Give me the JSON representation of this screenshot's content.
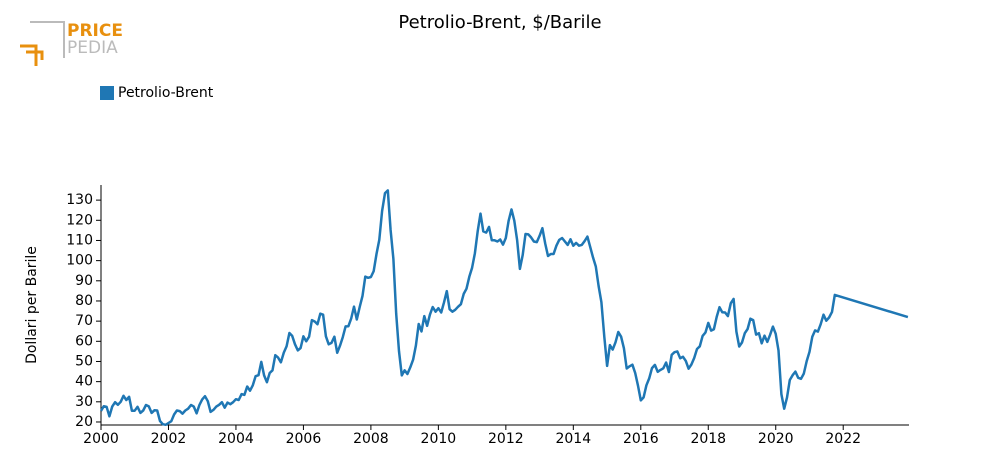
{
  "logo": {
    "top": "PRICE",
    "bottom": "PEDIA"
  },
  "chart_data": {
    "type": "line",
    "title": "Petrolio-Brent, $/Barile",
    "ylabel": "Dollari per Barile",
    "xlim": [
      2000,
      2023.95
    ],
    "ylim": [
      18.5,
      137.5
    ],
    "xticks": [
      2000,
      2002,
      2004,
      2006,
      2008,
      2010,
      2012,
      2014,
      2016,
      2018,
      2020,
      2022
    ],
    "yticks": [
      20,
      30,
      40,
      50,
      60,
      70,
      80,
      90,
      100,
      110,
      120,
      130
    ],
    "grid": false,
    "legend": "top-left",
    "x": [
      2000,
      2000.083,
      2000.167,
      2000.25,
      2000.333,
      2000.417,
      2000.5,
      2000.583,
      2000.667,
      2000.75,
      2000.833,
      2000.917,
      2001,
      2001.083,
      2001.167,
      2001.25,
      2001.333,
      2001.417,
      2001.5,
      2001.583,
      2001.667,
      2001.75,
      2001.833,
      2001.917,
      2002,
      2002.083,
      2002.167,
      2002.25,
      2002.333,
      2002.417,
      2002.5,
      2002.583,
      2002.667,
      2002.75,
      2002.833,
      2002.917,
      2003,
      2003.083,
      2003.167,
      2003.25,
      2003.333,
      2003.417,
      2003.5,
      2003.583,
      2003.667,
      2003.75,
      2003.833,
      2003.917,
      2004,
      2004.083,
      2004.167,
      2004.25,
      2004.333,
      2004.417,
      2004.5,
      2004.583,
      2004.667,
      2004.75,
      2004.833,
      2004.917,
      2005,
      2005.083,
      2005.167,
      2005.25,
      2005.333,
      2005.417,
      2005.5,
      2005.583,
      2005.667,
      2005.75,
      2005.833,
      2005.917,
      2006,
      2006.083,
      2006.167,
      2006.25,
      2006.333,
      2006.417,
      2006.5,
      2006.583,
      2006.667,
      2006.75,
      2006.833,
      2006.917,
      2007,
      2007.083,
      2007.167,
      2007.25,
      2007.333,
      2007.417,
      2007.5,
      2007.583,
      2007.667,
      2007.75,
      2007.833,
      2007.917,
      2008,
      2008.083,
      2008.167,
      2008.25,
      2008.333,
      2008.417,
      2008.5,
      2008.583,
      2008.667,
      2008.75,
      2008.833,
      2008.917,
      2009,
      2009.083,
      2009.167,
      2009.25,
      2009.333,
      2009.417,
      2009.5,
      2009.583,
      2009.667,
      2009.75,
      2009.833,
      2009.917,
      2010,
      2010.083,
      2010.167,
      2010.25,
      2010.333,
      2010.417,
      2010.5,
      2010.583,
      2010.667,
      2010.75,
      2010.833,
      2010.917,
      2011,
      2011.083,
      2011.167,
      2011.25,
      2011.333,
      2011.417,
      2011.5,
      2011.583,
      2011.667,
      2011.75,
      2011.833,
      2011.917,
      2012,
      2012.083,
      2012.167,
      2012.25,
      2012.333,
      2012.417,
      2012.5,
      2012.583,
      2012.667,
      2012.75,
      2012.833,
      2012.917,
      2013,
      2013.083,
      2013.167,
      2013.25,
      2013.333,
      2013.417,
      2013.5,
      2013.583,
      2013.667,
      2013.75,
      2013.833,
      2013.917,
      2014,
      2014.083,
      2014.167,
      2014.25,
      2014.333,
      2014.417,
      2014.5,
      2014.583,
      2014.667,
      2014.75,
      2014.833,
      2014.917,
      2015,
      2015.083,
      2015.167,
      2015.25,
      2015.333,
      2015.417,
      2015.5,
      2015.583,
      2015.667,
      2015.75,
      2015.833,
      2015.917,
      2016,
      2016.083,
      2016.167,
      2016.25,
      2016.333,
      2016.417,
      2016.5,
      2016.583,
      2016.667,
      2016.75,
      2016.833,
      2016.917,
      2017,
      2017.083,
      2017.167,
      2017.25,
      2017.333,
      2017.417,
      2017.5,
      2017.583,
      2017.667,
      2017.75,
      2017.833,
      2017.917,
      2018,
      2018.083,
      2018.167,
      2018.25,
      2018.333,
      2018.417,
      2018.5,
      2018.583,
      2018.667,
      2018.75,
      2018.833,
      2018.917,
      2019,
      2019.083,
      2019.167,
      2019.25,
      2019.333,
      2019.417,
      2019.5,
      2019.583,
      2019.667,
      2019.75,
      2019.833,
      2019.917,
      2020,
      2020.083,
      2020.167,
      2020.25,
      2020.333,
      2020.417,
      2020.5,
      2020.583,
      2020.667,
      2020.75,
      2020.833,
      2020.917,
      2021,
      2021.083,
      2021.167,
      2021.25,
      2021.333,
      2021.417,
      2021.5,
      2021.583,
      2021.667,
      2021.75,
      2023.917
    ],
    "series": [
      {
        "name": "Petrolio-Brent",
        "color": "#1f77b4",
        "values": [
          25.5,
          27.8,
          27.5,
          22.8,
          27.6,
          29.8,
          28.5,
          30.0,
          33.0,
          30.9,
          32.5,
          25.6,
          25.6,
          27.5,
          24.5,
          25.7,
          28.4,
          27.7,
          24.5,
          25.8,
          25.7,
          20.5,
          18.9,
          18.6,
          19.5,
          20.4,
          23.7,
          25.7,
          25.4,
          24.1,
          25.7,
          26.6,
          28.4,
          27.6,
          24.3,
          28.4,
          31.2,
          32.8,
          30.3,
          25.0,
          26.0,
          27.6,
          28.5,
          29.8,
          27.1,
          29.6,
          28.8,
          29.8,
          31.3,
          30.9,
          33.8,
          33.4,
          37.6,
          35.5,
          38.2,
          42.7,
          43.2,
          49.8,
          43.1,
          39.7,
          44.3,
          45.6,
          53.1,
          51.9,
          49.6,
          54.4,
          57.5,
          64.1,
          62.7,
          58.5,
          55.5,
          56.7,
          62.5,
          60.0,
          62.3,
          70.5,
          69.8,
          68.5,
          73.7,
          73.2,
          62.5,
          58.5,
          59.2,
          62.3,
          54.3,
          57.8,
          62.1,
          67.4,
          67.5,
          71.3,
          77.2,
          70.8,
          77.0,
          82.5,
          92.1,
          91.5,
          91.9,
          94.8,
          103.3,
          110.4,
          124.6,
          133.5,
          134.8,
          115.2,
          100.8,
          73.6,
          55.1,
          43.1,
          45.6,
          43.8,
          47.1,
          50.9,
          57.9,
          68.6,
          64.9,
          72.5,
          67.7,
          73.2,
          77.0,
          74.7,
          76.4,
          74.3,
          79.3,
          84.9,
          75.9,
          74.7,
          75.6,
          77.1,
          78.4,
          83.5,
          86.1,
          92.0,
          96.5,
          103.7,
          114.6,
          123.3,
          114.5,
          113.9,
          116.7,
          110.1,
          110.1,
          109.5,
          110.5,
          107.9,
          111.2,
          119.7,
          125.4,
          119.8,
          110.3,
          95.9,
          102.8,
          113.2,
          113.0,
          111.5,
          109.5,
          109.2,
          112.3,
          116.1,
          108.5,
          102.3,
          103.3,
          103.3,
          107.4,
          110.3,
          111.2,
          109.5,
          107.8,
          110.6,
          107.4,
          108.8,
          107.4,
          107.8,
          109.7,
          111.9,
          106.8,
          101.6,
          97.1,
          87.4,
          79.4,
          62.3,
          47.8,
          58.1,
          55.9,
          59.5,
          64.6,
          62.3,
          56.6,
          46.5,
          47.6,
          48.4,
          44.3,
          38.0,
          30.7,
          32.2,
          38.2,
          41.6,
          46.7,
          48.3,
          44.9,
          45.8,
          46.6,
          49.5,
          44.8,
          53.3,
          54.6,
          55.0,
          51.6,
          52.3,
          50.3,
          46.4,
          48.5,
          51.7,
          56.2,
          57.5,
          62.7,
          64.4,
          69.1,
          65.3,
          66.0,
          72.1,
          76.9,
          74.4,
          74.3,
          72.5,
          78.9,
          81.0,
          64.8,
          57.4,
          59.4,
          64.0,
          66.1,
          71.2,
          70.5,
          63.3,
          64.0,
          59.0,
          62.8,
          59.7,
          63.2,
          67.3,
          63.7,
          55.5,
          33.7,
          26.6,
          32.1,
          40.8,
          43.2,
          45.0,
          41.9,
          41.4,
          44.0,
          50.2,
          54.8,
          62.3,
          65.4,
          64.8,
          68.5,
          73.2,
          70.2,
          71.8,
          74.6,
          83.0,
          72.0
        ]
      }
    ]
  }
}
